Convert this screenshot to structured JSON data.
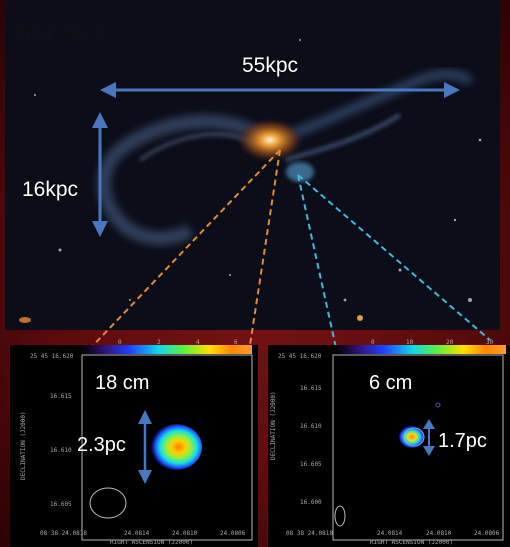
{
  "main_image": {
    "galaxy_name": "NGC2623",
    "horizontal_scale": "55kpc",
    "vertical_scale": "16kpc",
    "colors": {
      "background_red": "#5a0a0c",
      "space": "#0b0d18",
      "scale_arrow": "#4a78c0",
      "zoom_line_left": "#e08a3a",
      "zoom_line_right": "#43b8d8"
    }
  },
  "panels": [
    {
      "band": "18 cm",
      "size_label": "2.3pc",
      "colorbar_ticks": [
        "0",
        "2",
        "4",
        "6"
      ],
      "y_ticks": [
        "25 45 16.620",
        "16.615",
        "16.610",
        "16.605"
      ],
      "x_ticks": [
        "08 38 24.0818",
        "24.0814",
        "24.0810",
        "24.0806"
      ],
      "x_axis_label": "RIGHT ASCENSION (J2000)",
      "y_axis_label": "DECLINATION (J2000)"
    },
    {
      "band": "6 cm",
      "size_label": "1.7pc",
      "colorbar_ticks": [
        "0",
        "10",
        "20",
        "30"
      ],
      "y_ticks": [
        "25 45 16.620",
        "16.615",
        "16.610",
        "16.605",
        "16.600"
      ],
      "x_ticks": [
        "08 38 24.0818",
        "24.0814",
        "24.0810",
        "24.0806"
      ],
      "x_axis_label": "RIGHT ASCENSION (J2000)",
      "y_axis_label": "DECLINATION (J2000)"
    }
  ]
}
